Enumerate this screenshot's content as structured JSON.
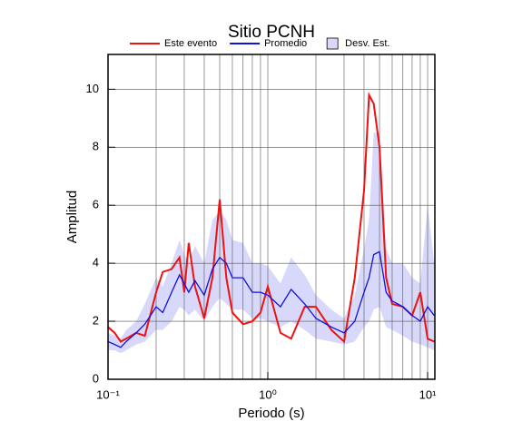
{
  "chart_data": {
    "type": "line",
    "title": "Sitio PCNH",
    "xlabel": "Periodo (s)",
    "ylabel": "Amplitud",
    "log_x": true,
    "grid": true,
    "xlim": [
      0.1,
      11.1
    ],
    "ylim": [
      0,
      11.2
    ],
    "xticks": [
      {
        "value": 0.1,
        "label": "10⁻¹"
      },
      {
        "value": 1,
        "label": "10⁰"
      },
      {
        "value": 10,
        "label": "10¹"
      }
    ],
    "xgrid": [
      0.2,
      0.3,
      0.4,
      0.5,
      0.6,
      0.7,
      0.8,
      0.9,
      2,
      3,
      4,
      5,
      6,
      7,
      8,
      9
    ],
    "yticks": [
      0,
      2,
      4,
      6,
      8,
      10
    ],
    "x": [
      0.1,
      0.11,
      0.12,
      0.13,
      0.15,
      0.17,
      0.2,
      0.22,
      0.25,
      0.28,
      0.3,
      0.32,
      0.35,
      0.4,
      0.45,
      0.5,
      0.55,
      0.6,
      0.7,
      0.8,
      0.9,
      1.0,
      1.2,
      1.4,
      1.7,
      2.0,
      2.5,
      3.0,
      3.5,
      4.0,
      4.3,
      4.6,
      5.0,
      5.5,
      6.0,
      7.0,
      8.0,
      9.0,
      10,
      11
    ],
    "band": {
      "name": "Desv. Est.",
      "color": "#d8d8fa",
      "lower": [
        1.0,
        1.0,
        0.9,
        1.0,
        1.2,
        1.3,
        1.7,
        1.7,
        2.0,
        2.5,
        2.4,
        2.2,
        2.4,
        2.0,
        2.5,
        2.8,
        2.6,
        2.4,
        2.4,
        2.1,
        2.1,
        2.0,
        1.8,
        2.0,
        1.7,
        1.4,
        1.3,
        1.2,
        1.3,
        1.8,
        2.0,
        2.4,
        2.5,
        1.8,
        1.7,
        1.5,
        1.3,
        1.2,
        1.1,
        1.0
      ],
      "upper": [
        1.6,
        1.5,
        1.4,
        1.7,
        2.0,
        2.6,
        3.5,
        3.2,
        4.0,
        4.8,
        4.3,
        4.0,
        4.6,
        4.0,
        5.5,
        5.8,
        5.5,
        4.8,
        4.7,
        4.0,
        4.0,
        3.9,
        3.3,
        4.2,
        3.6,
        2.9,
        2.4,
        2.1,
        2.9,
        4.5,
        5.5,
        8.5,
        8.5,
        4.5,
        4.0,
        4.0,
        3.5,
        3.3,
        6.0,
        4.0
      ]
    },
    "series": [
      {
        "name": "Este evento",
        "color": "#ee1111",
        "values": [
          1.8,
          1.6,
          1.3,
          1.4,
          1.6,
          1.5,
          3.0,
          3.7,
          3.8,
          4.2,
          3.0,
          4.7,
          3.2,
          2.1,
          3.5,
          6.2,
          3.5,
          2.3,
          1.9,
          2.0,
          2.3,
          3.2,
          1.6,
          1.4,
          2.5,
          2.5,
          1.7,
          1.3,
          3.5,
          6.5,
          9.8,
          9.5,
          8.0,
          3.5,
          2.6,
          2.5,
          2.2,
          3.0,
          1.4,
          1.3
        ]
      },
      {
        "name": "Promedio",
        "color": "#1111dd",
        "values": [
          1.3,
          1.2,
          1.1,
          1.3,
          1.6,
          1.9,
          2.5,
          2.3,
          3.0,
          3.6,
          3.3,
          3.0,
          3.4,
          2.9,
          3.8,
          4.2,
          4.0,
          3.5,
          3.5,
          3.0,
          3.0,
          2.9,
          2.5,
          3.1,
          2.6,
          2.1,
          1.8,
          1.6,
          2.0,
          3.0,
          3.5,
          4.3,
          4.4,
          3.0,
          2.7,
          2.5,
          2.2,
          2.0,
          2.5,
          2.2
        ]
      }
    ]
  }
}
